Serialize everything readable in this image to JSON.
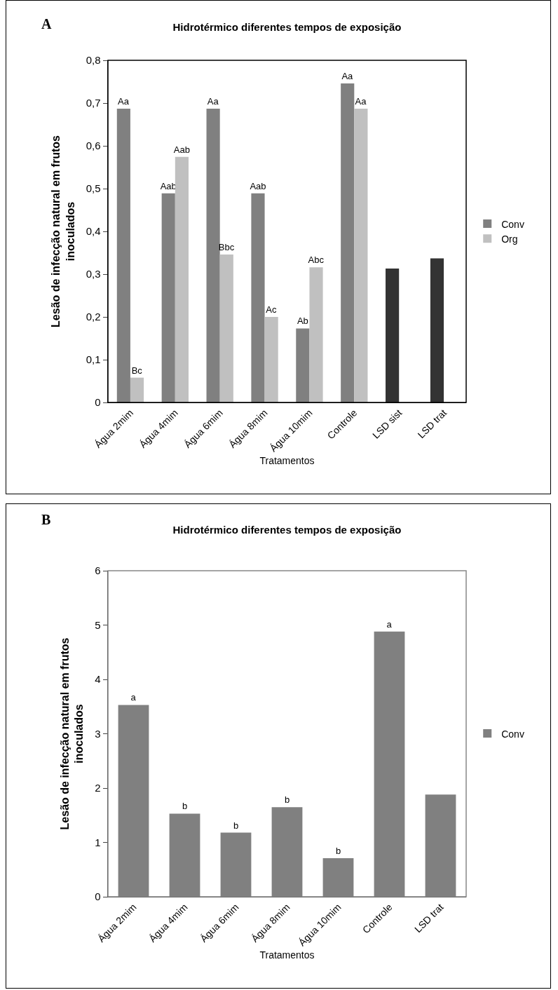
{
  "chart_data": [
    {
      "type": "bar",
      "title": "Hidrotérmico diferentes tempos de exposição",
      "xlabel": "Tratamentos",
      "ylabel": "Lesão de infecção natural em frutos inoculados",
      "annotations": [
        "A"
      ],
      "categories": [
        "Água 2mim",
        "Água 4mim",
        "Água 6mim",
        "Água 8mim",
        "Água 10mim",
        "Controle",
        "LSD sist",
        "LSD trat"
      ],
      "ylim": [
        0,
        0.8
      ],
      "yticks": [
        {
          "value": 0,
          "label": "0"
        },
        {
          "value": 0.1,
          "label": "0,1"
        },
        {
          "value": 0.2,
          "label": "0,2"
        },
        {
          "value": 0.3,
          "label": "0,3"
        },
        {
          "value": 0.4,
          "label": "0,4"
        },
        {
          "value": 0.5,
          "label": "0,5"
        },
        {
          "value": 0.6,
          "label": "0,6"
        },
        {
          "value": 0.7,
          "label": "0,7"
        },
        {
          "value": 0.8,
          "label": "0,8"
        }
      ],
      "grid": false,
      "legend": "right",
      "series": [
        {
          "name": "Conv",
          "color": "#808080",
          "colors": [
            null,
            null,
            null,
            null,
            null,
            null,
            "#333333",
            "#333333"
          ],
          "values": [
            0.687,
            0.489,
            0.687,
            0.489,
            0.173,
            0.746,
            0.313,
            0.337
          ],
          "value_labels": [
            "Aa",
            "Aab",
            "Aa",
            "Aab",
            "Ab",
            "Aa",
            null,
            null
          ]
        },
        {
          "name": "Org",
          "color": "#c0c0c0",
          "values": [
            0.058,
            0.574,
            0.346,
            0.2,
            0.316,
            0.687,
            null,
            null
          ],
          "value_labels": [
            "Bc",
            "Aab",
            "Bbc",
            "Ac",
            "Abc",
            "Aa",
            null,
            null
          ]
        }
      ]
    },
    {
      "type": "bar",
      "title": "Hidrotérmico diferentes tempos de exposição",
      "xlabel": "Tratamentos",
      "ylabel": "Lesão de infecção natural em frutos inoculados",
      "annotations": [
        "B"
      ],
      "categories": [
        "Água 2mim",
        "Água 4mim",
        "Água 6mim",
        "Água 8mim",
        "Água 10mim",
        "Controle",
        "LSD trat"
      ],
      "ylim": [
        0,
        6
      ],
      "yticks": [
        0,
        1,
        2,
        3,
        4,
        5,
        6
      ],
      "grid": false,
      "legend": "right",
      "series": [
        {
          "name": "Conv",
          "color": "#808080",
          "values": [
            3.53,
            1.53,
            1.18,
            1.65,
            0.71,
            4.88,
            1.88
          ],
          "value_labels": [
            "a",
            "b",
            "b",
            "b",
            "b",
            "a",
            null
          ]
        }
      ]
    }
  ]
}
